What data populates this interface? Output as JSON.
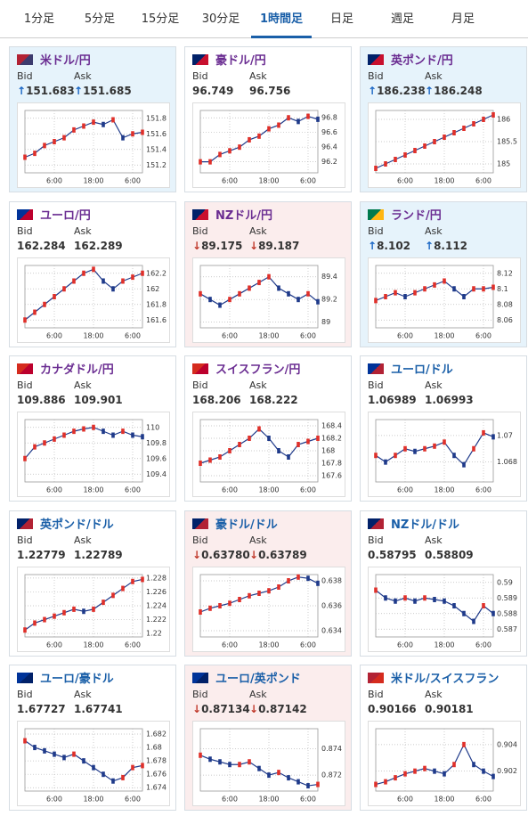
{
  "tabs": [
    "1分足",
    "5分足",
    "15分足",
    "30分足",
    "1時間足",
    "日足",
    "週足",
    "月足"
  ],
  "active_tab": 4,
  "panels": [
    {
      "title": "米ドル/円",
      "color": "#6a2c91",
      "trend": "up",
      "bid_label": "Bid",
      "ask_label": "Ask",
      "bid": "↑151.683",
      "ask": "↑151.685",
      "chart": {
        "type": "line",
        "ylim": [
          151.1,
          151.9
        ],
        "yticks": [
          151.2,
          151.4,
          151.6,
          151.8
        ],
        "xlim": [
          0,
          12
        ],
        "xticks": [
          {
            "value": 3,
            "label": "6:00"
          },
          {
            "value": 7,
            "label": "18:00"
          },
          {
            "value": 11,
            "label": "6:00"
          }
        ],
        "values": [
          151.3,
          151.35,
          151.45,
          151.5,
          151.55,
          151.65,
          151.7,
          151.75,
          151.72,
          151.78,
          151.55,
          151.6,
          151.62
        ]
      }
    },
    {
      "title": "豪ドル/円",
      "color": "#6a2c91",
      "trend": "none",
      "bid_label": "Bid",
      "ask_label": "Ask",
      "bid": "96.749",
      "ask": "96.756",
      "chart": {
        "type": "line",
        "ylim": [
          96.05,
          96.9
        ],
        "yticks": [
          96.2,
          96.4,
          96.6,
          96.8
        ],
        "xlim": [
          0,
          12
        ],
        "xticks": [
          {
            "value": 3,
            "label": "6:00"
          },
          {
            "value": 7,
            "label": "18:00"
          },
          {
            "value": 11,
            "label": "6:00"
          }
        ],
        "values": [
          96.2,
          96.2,
          96.3,
          96.35,
          96.4,
          96.5,
          96.55,
          96.65,
          96.7,
          96.8,
          96.75,
          96.82,
          96.78
        ]
      }
    },
    {
      "title": "英ポンド/円",
      "color": "#6a2c91",
      "trend": "up",
      "bid_label": "Bid",
      "ask_label": "Ask",
      "bid": "↑186.238",
      "ask": "↑186.248",
      "chart": {
        "type": "line",
        "ylim": [
          184.8,
          186.2
        ],
        "yticks": [
          185,
          185.5,
          186
        ],
        "xlim": [
          0,
          12
        ],
        "xticks": [
          {
            "value": 3,
            "label": "6:00"
          },
          {
            "value": 7,
            "label": "18:00"
          },
          {
            "value": 11,
            "label": "6:00"
          }
        ],
        "values": [
          184.9,
          185.0,
          185.1,
          185.2,
          185.3,
          185.4,
          185.5,
          185.6,
          185.7,
          185.8,
          185.9,
          186.0,
          186.1
        ]
      }
    },
    {
      "title": "ユーロ/円",
      "color": "#6a2c91",
      "trend": "none",
      "bid_label": "Bid",
      "ask_label": "Ask",
      "bid": "162.284",
      "ask": "162.289",
      "chart": {
        "type": "line",
        "ylim": [
          161.5,
          162.3
        ],
        "yticks": [
          161.6,
          161.8,
          162,
          162.2
        ],
        "xlim": [
          0,
          12
        ],
        "xticks": [
          {
            "value": 3,
            "label": "6:00"
          },
          {
            "value": 7,
            "label": "18:00"
          },
          {
            "value": 11,
            "label": "6:00"
          }
        ],
        "values": [
          161.6,
          161.7,
          161.8,
          161.9,
          162.0,
          162.1,
          162.2,
          162.25,
          162.1,
          162.0,
          162.1,
          162.15,
          162.2
        ]
      }
    },
    {
      "title": "NZドル/円",
      "color": "#6a2c91",
      "trend": "down",
      "bid_label": "Bid",
      "ask_label": "Ask",
      "bid": "↓89.175",
      "ask": "↓89.187",
      "chart": {
        "type": "line",
        "ylim": [
          88.95,
          89.5
        ],
        "yticks": [
          89,
          89.2,
          89.4
        ],
        "xlim": [
          0,
          12
        ],
        "xticks": [
          {
            "value": 3,
            "label": "6:00"
          },
          {
            "value": 7,
            "label": "18:00"
          },
          {
            "value": 11,
            "label": "6:00"
          }
        ],
        "values": [
          89.25,
          89.2,
          89.15,
          89.2,
          89.25,
          89.3,
          89.35,
          89.4,
          89.3,
          89.25,
          89.2,
          89.25,
          89.18
        ]
      }
    },
    {
      "title": "ランド/円",
      "color": "#6a2c91",
      "trend": "up",
      "bid_label": "Bid",
      "ask_label": "Ask",
      "bid": "↑8.102",
      "ask": "↑8.112",
      "chart": {
        "type": "line",
        "ylim": [
          8.05,
          8.13
        ],
        "yticks": [
          8.06,
          8.08,
          8.1,
          8.12
        ],
        "xlim": [
          0,
          12
        ],
        "xticks": [
          {
            "value": 3,
            "label": "6:00"
          },
          {
            "value": 7,
            "label": "18:00"
          },
          {
            "value": 11,
            "label": "6:00"
          }
        ],
        "values": [
          8.085,
          8.09,
          8.095,
          8.09,
          8.095,
          8.1,
          8.105,
          8.11,
          8.1,
          8.09,
          8.1,
          8.1,
          8.102
        ]
      }
    },
    {
      "title": "カナダドル/円",
      "color": "#6a2c91",
      "trend": "none",
      "bid_label": "Bid",
      "ask_label": "Ask",
      "bid": "109.886",
      "ask": "109.901",
      "chart": {
        "type": "line",
        "ylim": [
          109.3,
          110.1
        ],
        "yticks": [
          109.4,
          109.6,
          109.8,
          110
        ],
        "xlim": [
          0,
          12
        ],
        "xticks": [
          {
            "value": 3,
            "label": "6:00"
          },
          {
            "value": 7,
            "label": "18:00"
          },
          {
            "value": 11,
            "label": "6:00"
          }
        ],
        "values": [
          109.6,
          109.75,
          109.8,
          109.85,
          109.9,
          109.95,
          109.98,
          110.0,
          109.95,
          109.9,
          109.95,
          109.9,
          109.88
        ]
      }
    },
    {
      "title": "スイスフラン/円",
      "color": "#6a2c91",
      "trend": "none",
      "bid_label": "Bid",
      "ask_label": "Ask",
      "bid": "168.206",
      "ask": "168.222",
      "chart": {
        "type": "line",
        "ylim": [
          167.5,
          168.5
        ],
        "yticks": [
          167.6,
          167.8,
          168,
          168.2,
          168.4
        ],
        "xlim": [
          0,
          12
        ],
        "xticks": [
          {
            "value": 3,
            "label": "6:00"
          },
          {
            "value": 7,
            "label": "18:00"
          },
          {
            "value": 11,
            "label": "6:00"
          }
        ],
        "values": [
          167.8,
          167.85,
          167.9,
          168.0,
          168.1,
          168.2,
          168.35,
          168.2,
          168.0,
          167.9,
          168.1,
          168.15,
          168.2
        ]
      }
    },
    {
      "title": "ユーロ/ドル",
      "color": "#1a5fa8",
      "trend": "none",
      "bid_label": "Bid",
      "ask_label": "Ask",
      "bid": "1.06989",
      "ask": "1.06993",
      "chart": {
        "type": "line",
        "ylim": [
          1.0665,
          1.0712
        ],
        "yticks": [
          1.068,
          1.07
        ],
        "xlim": [
          0,
          12
        ],
        "xticks": [
          {
            "value": 3,
            "label": "6:00"
          },
          {
            "value": 7,
            "label": "18:00"
          },
          {
            "value": 11,
            "label": "6:00"
          }
        ],
        "values": [
          1.0685,
          1.068,
          1.0685,
          1.069,
          1.0688,
          1.069,
          1.0692,
          1.0695,
          1.0685,
          1.0678,
          1.069,
          1.0702,
          1.0699
        ]
      }
    },
    {
      "title": "英ポンド/ドル",
      "color": "#1a5fa8",
      "trend": "none",
      "bid_label": "Bid",
      "ask_label": "Ask",
      "bid": "1.22779",
      "ask": "1.22789",
      "chart": {
        "type": "line",
        "ylim": [
          1.2195,
          1.2285
        ],
        "yticks": [
          1.22,
          1.222,
          1.224,
          1.226,
          1.228
        ],
        "xlim": [
          0,
          12
        ],
        "xticks": [
          {
            "value": 3,
            "label": "6:00"
          },
          {
            "value": 7,
            "label": "18:00"
          },
          {
            "value": 11,
            "label": "6:00"
          }
        ],
        "values": [
          1.2205,
          1.2215,
          1.222,
          1.2225,
          1.223,
          1.2235,
          1.2232,
          1.2235,
          1.2245,
          1.2255,
          1.2265,
          1.2275,
          1.2278
        ]
      }
    },
    {
      "title": "豪ドル/ドル",
      "color": "#1a5fa8",
      "trend": "down",
      "bid_label": "Bid",
      "ask_label": "Ask",
      "bid": "↓0.63780",
      "ask": "↓0.63789",
      "chart": {
        "type": "line",
        "ylim": [
          0.6335,
          0.6385
        ],
        "yticks": [
          0.634,
          0.636,
          0.638
        ],
        "xlim": [
          0,
          12
        ],
        "xticks": [
          {
            "value": 3,
            "label": "6:00"
          },
          {
            "value": 7,
            "label": "18:00"
          },
          {
            "value": 11,
            "label": "6:00"
          }
        ],
        "values": [
          0.6355,
          0.6358,
          0.636,
          0.6362,
          0.6365,
          0.6368,
          0.637,
          0.6372,
          0.6375,
          0.638,
          0.6383,
          0.6382,
          0.6378
        ]
      }
    },
    {
      "title": "NZドル/ドル",
      "color": "#1a5fa8",
      "trend": "none",
      "bid_label": "Bid",
      "ask_label": "Ask",
      "bid": "0.58795",
      "ask": "0.58809",
      "chart": {
        "type": "line",
        "ylim": [
          0.5865,
          0.5905
        ],
        "yticks": [
          0.587,
          0.588,
          0.589,
          0.59
        ],
        "xlim": [
          0,
          12
        ],
        "xticks": [
          {
            "value": 3,
            "label": "6:00"
          },
          {
            "value": 7,
            "label": "18:00"
          },
          {
            "value": 11,
            "label": "6:00"
          }
        ],
        "values": [
          0.5895,
          0.589,
          0.5888,
          0.589,
          0.5888,
          0.589,
          0.5889,
          0.5888,
          0.5885,
          0.588,
          0.5875,
          0.5885,
          0.588
        ]
      }
    },
    {
      "title": "ユーロ/豪ドル",
      "color": "#1a5fa8",
      "trend": "none",
      "bid_label": "Bid",
      "ask_label": "Ask",
      "bid": "1.67727",
      "ask": "1.67741",
      "chart": {
        "type": "line",
        "ylim": [
          1.6735,
          1.6828
        ],
        "yticks": [
          1.674,
          1.676,
          1.678,
          1.68,
          1.682
        ],
        "xlim": [
          0,
          12
        ],
        "xticks": [
          {
            "value": 3,
            "label": "6:00"
          },
          {
            "value": 7,
            "label": "18:00"
          },
          {
            "value": 11,
            "label": "6:00"
          }
        ],
        "values": [
          1.681,
          1.68,
          1.6795,
          1.679,
          1.6785,
          1.679,
          1.678,
          1.677,
          1.676,
          1.675,
          1.6755,
          1.677,
          1.6773
        ]
      }
    },
    {
      "title": "ユーロ/英ポンド",
      "color": "#1a5fa8",
      "trend": "down",
      "bid_label": "Bid",
      "ask_label": "Ask",
      "bid": "↓0.87134",
      "ask": "↓0.87142",
      "chart": {
        "type": "line",
        "ylim": [
          0.8708,
          0.8755
        ],
        "yticks": [
          0.872,
          0.874
        ],
        "xlim": [
          0,
          12
        ],
        "xticks": [
          {
            "value": 3,
            "label": "6:00"
          },
          {
            "value": 7,
            "label": "18:00"
          },
          {
            "value": 11,
            "label": "6:00"
          }
        ],
        "values": [
          0.8735,
          0.8732,
          0.873,
          0.8728,
          0.8728,
          0.873,
          0.8725,
          0.872,
          0.8722,
          0.8718,
          0.8715,
          0.8712,
          0.8713
        ]
      }
    },
    {
      "title": "米ドル/スイスフラン",
      "color": "#1a5fa8",
      "trend": "none",
      "bid_label": "Bid",
      "ask_label": "Ask",
      "bid": "0.90166",
      "ask": "0.90181",
      "chart": {
        "type": "line",
        "ylim": [
          0.9005,
          0.9052
        ],
        "yticks": [
          0.902,
          0.904
        ],
        "xlim": [
          0,
          12
        ],
        "xticks": [
          {
            "value": 3,
            "label": "6:00"
          },
          {
            "value": 7,
            "label": "18:00"
          },
          {
            "value": 11,
            "label": "6:00"
          }
        ],
        "values": [
          0.901,
          0.9012,
          0.9015,
          0.9018,
          0.902,
          0.9022,
          0.902,
          0.9018,
          0.9025,
          0.904,
          0.9025,
          0.902,
          0.9016
        ]
      }
    }
  ]
}
